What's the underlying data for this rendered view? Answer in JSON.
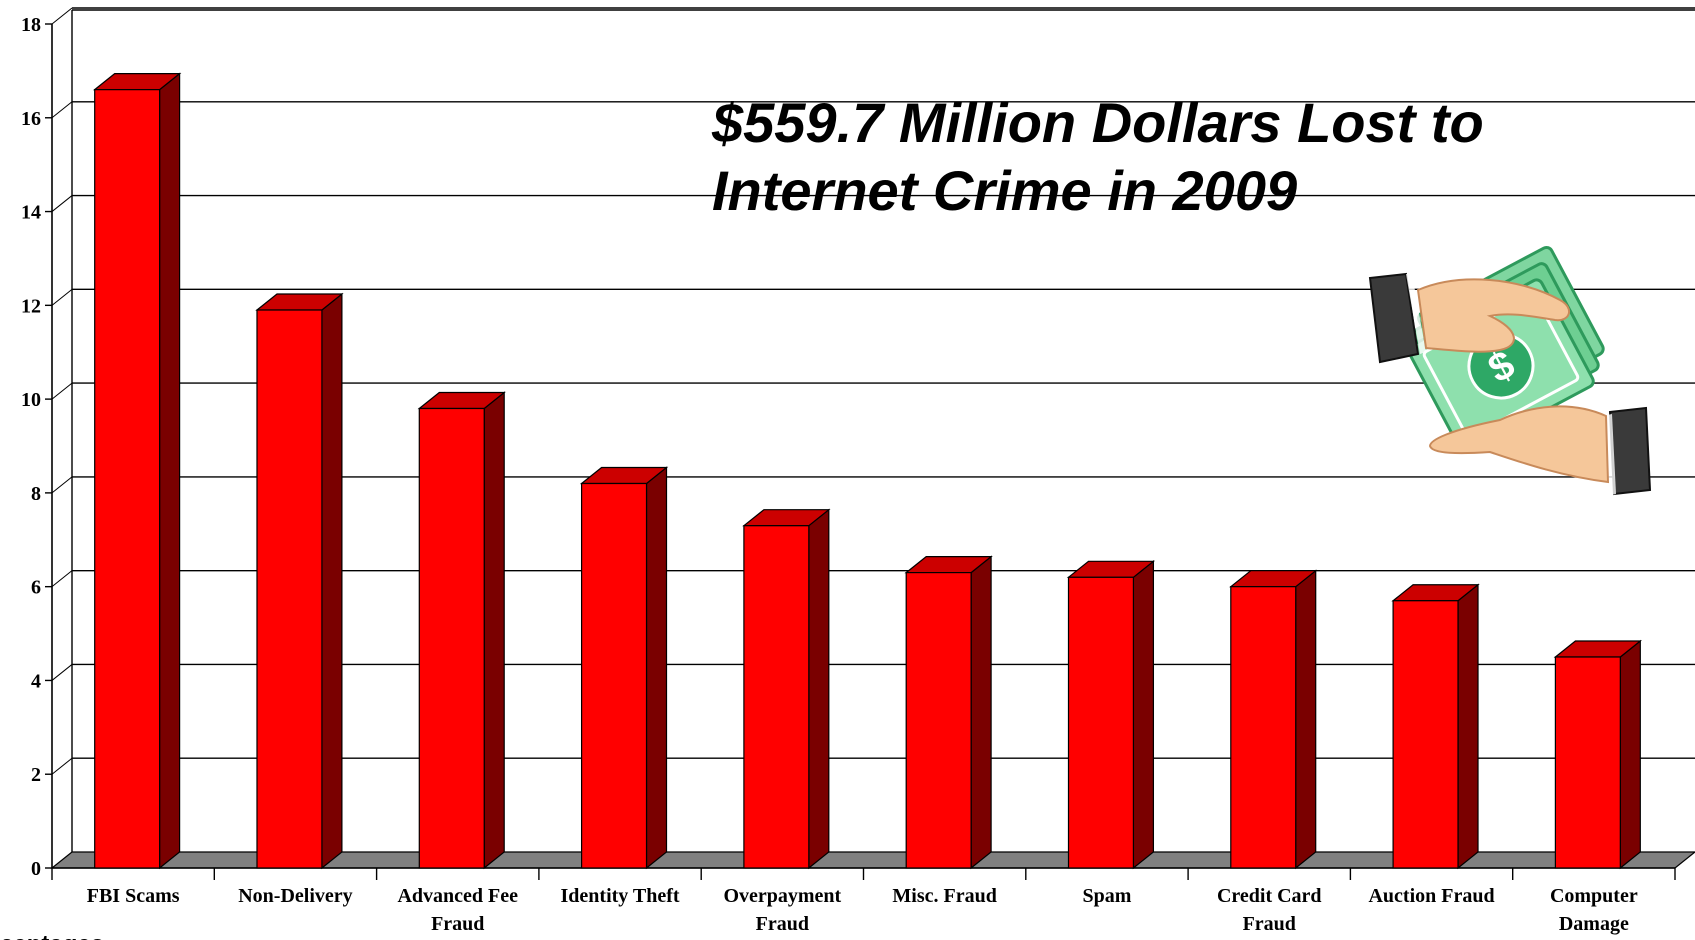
{
  "chart_data": {
    "type": "bar",
    "categories": [
      [
        "FBI Scams"
      ],
      [
        "Non-Delivery"
      ],
      [
        "Advanced Fee",
        "Fraud"
      ],
      [
        "Identity Theft"
      ],
      [
        "Overpayment",
        "Fraud"
      ],
      [
        "Misc. Fraud"
      ],
      [
        "Spam"
      ],
      [
        "Credit Card",
        "Fraud"
      ],
      [
        "Auction Fraud"
      ],
      [
        "Computer",
        "Damage"
      ]
    ],
    "values": [
      16.6,
      11.9,
      9.8,
      8.2,
      7.3,
      6.3,
      6.2,
      6.0,
      5.7,
      4.5
    ],
    "ylim": [
      0,
      18
    ],
    "yticks": [
      0,
      2,
      4,
      6,
      8,
      10,
      12,
      14,
      16,
      18
    ],
    "grid": true,
    "bar_style": "3d",
    "colors": {
      "bar_front": "#ff0000",
      "bar_top": "#cc0000",
      "bar_side": "#7a0000",
      "floor": "#808080"
    },
    "annotation": [
      "$559.7 Million Dollars Lost to",
      "Internet Crime in 2009"
    ],
    "footnote": "centages",
    "illustration": "hands-exchanging-money-icon"
  }
}
